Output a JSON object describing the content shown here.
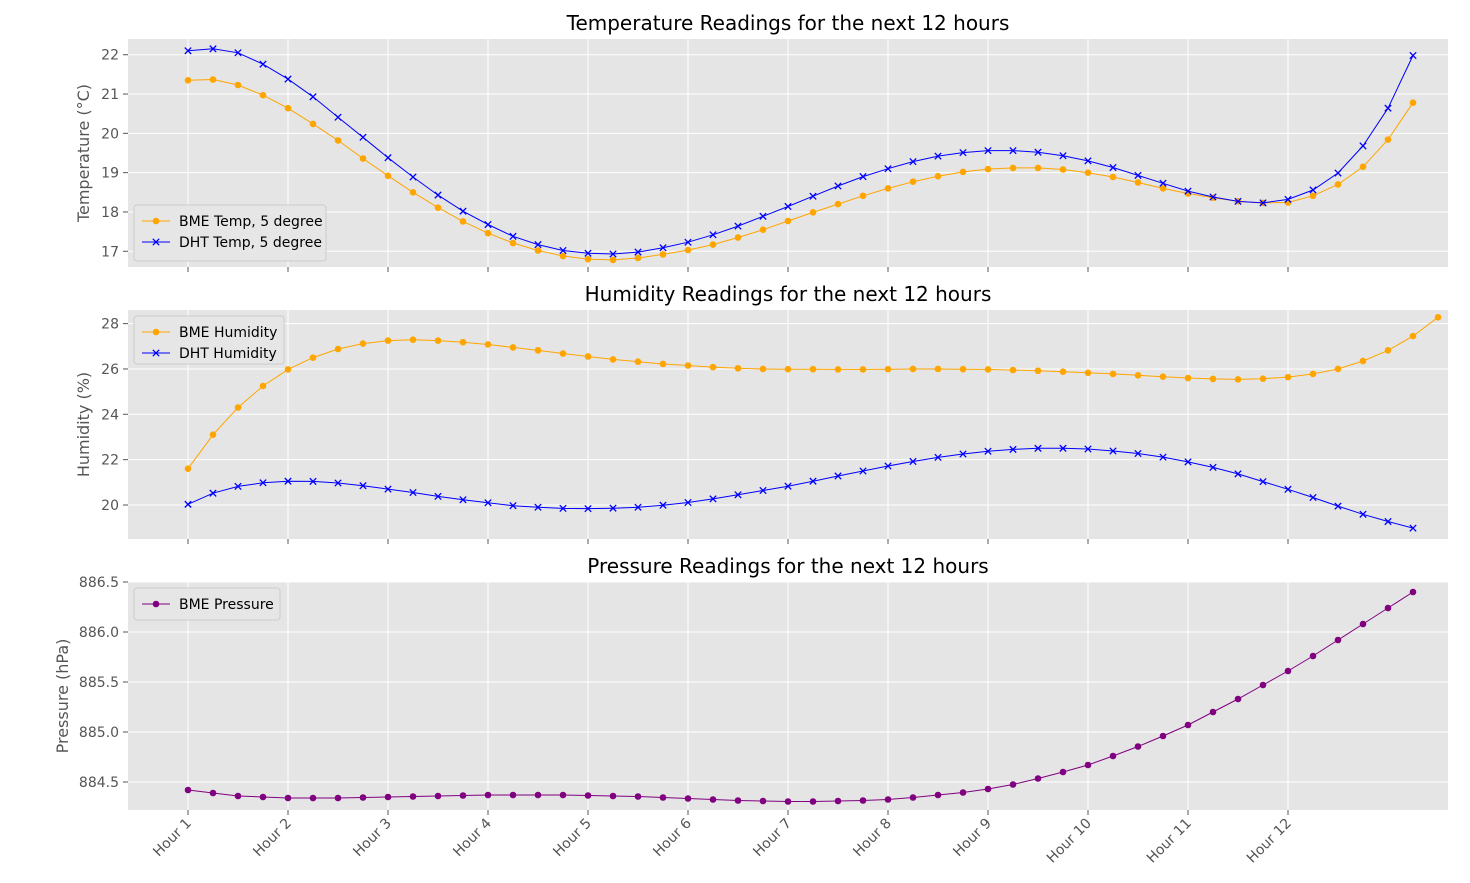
{
  "x_tick_labels": [
    "Hour 1",
    "Hour 2",
    "Hour 3",
    "Hour 4",
    "Hour 5",
    "Hour 6",
    "Hour 7",
    "Hour 8",
    "Hour 9",
    "Hour 10",
    "Hour 11",
    "Hour 12"
  ],
  "colors": {
    "bme": "#ffa500",
    "dht": "#0000ff",
    "pressure": "#800080",
    "panel_bg": "#e5e5e5",
    "grid": "#ffffff"
  },
  "chart_data": [
    {
      "type": "line",
      "title": "Temperature Readings for the next 12 hours",
      "ylabel": "Temperature (°C)",
      "ylim": [
        16.6,
        22.4
      ],
      "yticks": [
        17,
        18,
        19,
        20,
        21,
        22
      ],
      "xlim": [
        0.4,
        13.6
      ],
      "grid": true,
      "legend": "lower left",
      "series": [
        {
          "name": "BME Temp, 5 degree",
          "color": "#ffa500",
          "marker": "o",
          "x_start": 1,
          "x_step": 0.25,
          "values": [
            21.35,
            21.37,
            21.23,
            20.97,
            20.64,
            20.24,
            19.82,
            19.36,
            18.92,
            18.5,
            18.11,
            17.76,
            17.46,
            17.21,
            17.02,
            16.88,
            16.8,
            16.78,
            16.83,
            16.92,
            17.03,
            17.17,
            17.35,
            17.55,
            17.77,
            17.99,
            18.2,
            18.41,
            18.6,
            18.77,
            18.91,
            19.02,
            19.09,
            19.12,
            19.12,
            19.08,
            19.0,
            18.89,
            18.75,
            18.6,
            18.47,
            18.36,
            18.27,
            18.23,
            18.24,
            18.41,
            18.7,
            19.15,
            19.84,
            20.78
          ]
        },
        {
          "name": "DHT Temp, 5 degree",
          "color": "#0000ff",
          "marker": "x",
          "x_start": 1,
          "x_step": 0.25,
          "values": [
            22.1,
            22.15,
            22.05,
            21.76,
            21.38,
            20.93,
            20.41,
            19.9,
            19.38,
            18.89,
            18.43,
            18.02,
            17.68,
            17.38,
            17.17,
            17.02,
            16.95,
            16.93,
            16.98,
            17.09,
            17.23,
            17.42,
            17.64,
            17.89,
            18.14,
            18.4,
            18.66,
            18.9,
            19.1,
            19.28,
            19.42,
            19.51,
            19.56,
            19.56,
            19.52,
            19.43,
            19.3,
            19.13,
            18.93,
            18.73,
            18.53,
            18.38,
            18.27,
            18.23,
            18.32,
            18.56,
            18.99,
            19.68,
            20.64,
            21.98
          ]
        }
      ]
    },
    {
      "type": "line",
      "title": "Humidity Readings for the next 12 hours",
      "ylabel": "Humidity (%)",
      "ylim": [
        18.5,
        28.6
      ],
      "yticks": [
        20,
        22,
        24,
        26,
        28
      ],
      "xlim": [
        0.4,
        13.6
      ],
      "grid": true,
      "legend": "upper left",
      "series": [
        {
          "name": "BME Humidity",
          "color": "#ffa500",
          "marker": "o",
          "x_start": 1,
          "x_step": 0.25,
          "values": [
            21.6,
            23.1,
            24.3,
            25.25,
            25.98,
            26.5,
            26.88,
            27.12,
            27.25,
            27.29,
            27.25,
            27.18,
            27.08,
            26.95,
            26.82,
            26.68,
            26.55,
            26.42,
            26.32,
            26.22,
            26.15,
            26.08,
            26.03,
            26.0,
            25.99,
            25.99,
            25.98,
            25.98,
            25.99,
            26.0,
            26.0,
            25.99,
            25.98,
            25.95,
            25.92,
            25.88,
            25.83,
            25.78,
            25.72,
            25.66,
            25.6,
            25.56,
            25.54,
            25.57,
            25.64,
            25.78,
            26.0,
            26.35,
            26.82,
            27.45,
            28.28
          ]
        },
        {
          "name": "DHT Humidity",
          "color": "#0000ff",
          "marker": "x",
          "x_start": 1,
          "x_step": 0.25,
          "values": [
            20.03,
            20.52,
            20.82,
            20.98,
            21.05,
            21.04,
            20.97,
            20.85,
            20.7,
            20.55,
            20.38,
            20.23,
            20.1,
            19.97,
            19.9,
            19.85,
            19.84,
            19.86,
            19.9,
            19.99,
            20.11,
            20.27,
            20.45,
            20.64,
            20.83,
            21.05,
            21.28,
            21.5,
            21.72,
            21.92,
            22.1,
            22.25,
            22.37,
            22.45,
            22.5,
            22.5,
            22.47,
            22.38,
            22.27,
            22.11,
            21.9,
            21.66,
            21.37,
            21.03,
            20.69,
            20.33,
            19.95,
            19.59,
            19.27,
            18.98
          ]
        }
      ]
    },
    {
      "type": "line",
      "title": "Pressure Readings for the next 12 hours",
      "ylabel": "Pressure (hPa)",
      "ylim": [
        884.22,
        886.5
      ],
      "yticks": [
        884.5,
        885.0,
        885.5,
        886.0,
        886.5
      ],
      "ytick_labels": [
        "884.5",
        "885.0",
        "885.5",
        "886.0",
        "886.5"
      ],
      "xlim": [
        0.4,
        13.6
      ],
      "grid": true,
      "legend": "upper left",
      "series": [
        {
          "name": "BME Pressure",
          "color": "#800080",
          "marker": "o",
          "x_start": 1,
          "x_step": 0.25,
          "values": [
            884.42,
            884.39,
            884.36,
            884.35,
            884.34,
            884.34,
            884.34,
            884.345,
            884.35,
            884.355,
            884.36,
            884.365,
            884.37,
            884.37,
            884.37,
            884.37,
            884.365,
            884.36,
            884.355,
            884.345,
            884.335,
            884.325,
            884.315,
            884.31,
            884.305,
            884.305,
            884.31,
            884.315,
            884.325,
            884.345,
            884.37,
            884.395,
            884.43,
            884.475,
            884.535,
            884.6,
            884.67,
            884.76,
            884.855,
            884.96,
            885.07,
            885.2,
            885.33,
            885.47,
            885.61,
            885.76,
            885.92,
            886.08,
            886.24,
            886.4
          ]
        }
      ]
    }
  ]
}
